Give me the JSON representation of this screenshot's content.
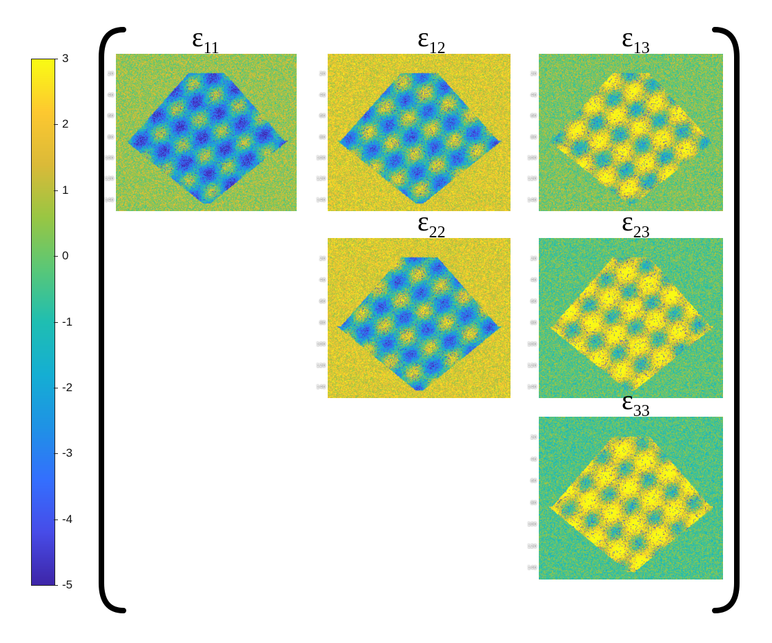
{
  "chart_data": {
    "type": "heatmap",
    "colormap": "parula",
    "colorbar": {
      "vmin": -5,
      "vmax": 3,
      "tick_labels": [
        "3",
        "2",
        "1",
        "0",
        "-1",
        "-2",
        "-3",
        "-4",
        "-5"
      ],
      "tick_values": [
        3,
        2,
        1,
        0,
        -1,
        -2,
        -3,
        -4,
        -5
      ]
    },
    "panels": [
      {
        "id": "e11",
        "symbol": "ε",
        "subscript": "11",
        "row": 1,
        "col": 1,
        "ytick_labels": [
          "20",
          "40",
          "60",
          "80",
          "100",
          "120",
          "140"
        ]
      },
      {
        "id": "e12",
        "symbol": "ε",
        "subscript": "12",
        "row": 1,
        "col": 2,
        "ytick_labels": [
          "20",
          "40",
          "60",
          "80",
          "100",
          "120",
          "140"
        ]
      },
      {
        "id": "e13",
        "symbol": "ε",
        "subscript": "13",
        "row": 1,
        "col": 3,
        "ytick_labels": [
          "20",
          "40",
          "60",
          "80",
          "100",
          "120",
          "140"
        ]
      },
      {
        "id": "e22",
        "symbol": "ε",
        "subscript": "22",
        "row": 2,
        "col": 2,
        "ytick_labels": [
          "20",
          "40",
          "60",
          "80",
          "100",
          "120",
          "140"
        ]
      },
      {
        "id": "e23",
        "symbol": "ε",
        "subscript": "23",
        "row": 2,
        "col": 3,
        "ytick_labels": [
          "20",
          "40",
          "60",
          "80",
          "100",
          "120",
          "140"
        ]
      },
      {
        "id": "e33",
        "symbol": "ε",
        "subscript": "33",
        "row": 3,
        "col": 3,
        "ytick_labels": [
          "20",
          "40",
          "60",
          "80",
          "100",
          "120",
          "140"
        ]
      }
    ]
  }
}
